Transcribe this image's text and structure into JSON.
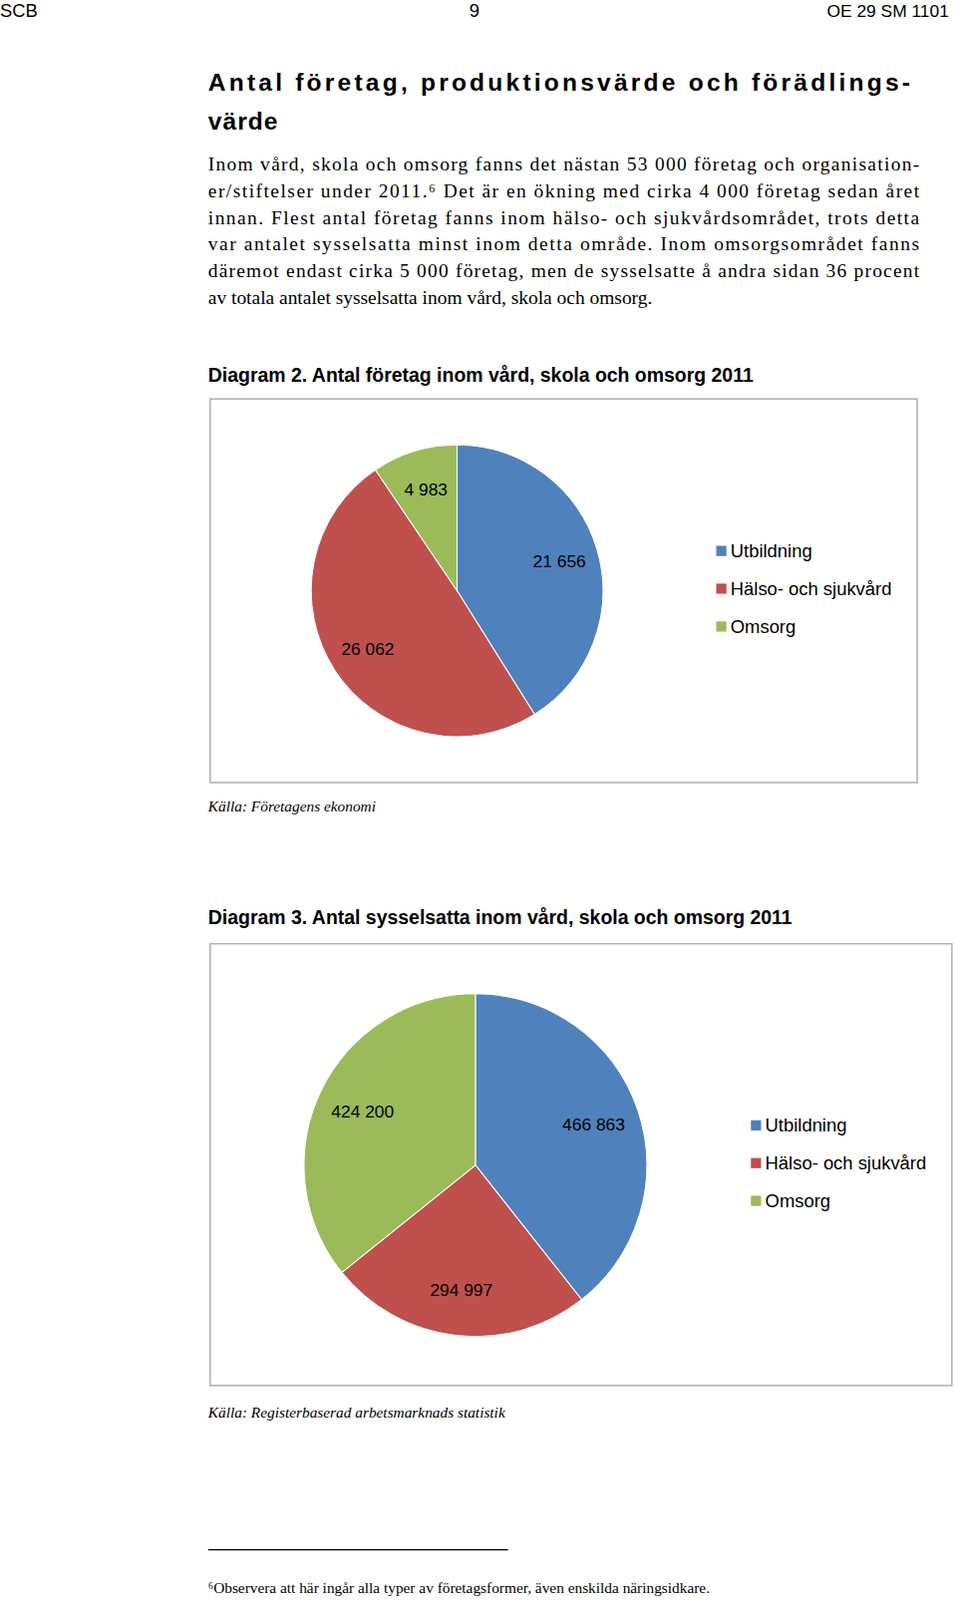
{
  "header": {
    "left": "SCB",
    "center": "9",
    "right": "OE 29 SM 1101"
  },
  "title": [
    "Antal företag, produktionsvärde och förädlings-",
    "värde"
  ],
  "paragraph": [
    "Inom vård, skola och omsorg fanns det nästan 53 000 företag och organisation-",
    "er/stiftelser under 2011.⁶ Det är en ökning med cirka 4 000 företag sedan året",
    "innan. Flest antal företag fanns inom hälso- och sjukvårdsområdet, trots detta",
    "var antalet sysselsatta minst inom detta område. Inom omsorgsområdet fanns",
    "däremot endast cirka 5 000 företag, men de sysselsatte å andra sidan 36 procent",
    "av totala antalet sysselsatta inom vård, skola och omsorg."
  ],
  "chart_data": [
    {
      "type": "pie",
      "title": "Diagram 2. Antal företag inom vård, skola och omsorg 2011",
      "categories": [
        "Utbildning",
        "Hälso- och sjukvård",
        "Omsorg"
      ],
      "values": [
        21656,
        26062,
        4983
      ],
      "value_labels": [
        "21 656",
        "26 062",
        "4 983"
      ],
      "colors": [
        "#4f81bd",
        "#c0504d",
        "#9bbb59"
      ],
      "data_labels": true,
      "legend": "right",
      "source": "Källa: Företagens ekonomi"
    },
    {
      "type": "pie",
      "title": "Diagram 3. Antal sysselsatta inom vård, skola och omsorg 2011",
      "categories": [
        "Utbildning",
        "Hälso- och sjukvård",
        "Omsorg"
      ],
      "values": [
        466863,
        294997,
        424200
      ],
      "value_labels": [
        "466 863",
        "294 997",
        "424 200"
      ],
      "colors": [
        "#4f81bd",
        "#c0504d",
        "#9bbb59"
      ],
      "data_labels": true,
      "legend": "right",
      "source": "Källa: Registerbaserad arbetsmarknads statistik"
    }
  ],
  "footnote": "⁶Observera att här ingår alla typer av företagsformer, även enskilda näringsidkare."
}
